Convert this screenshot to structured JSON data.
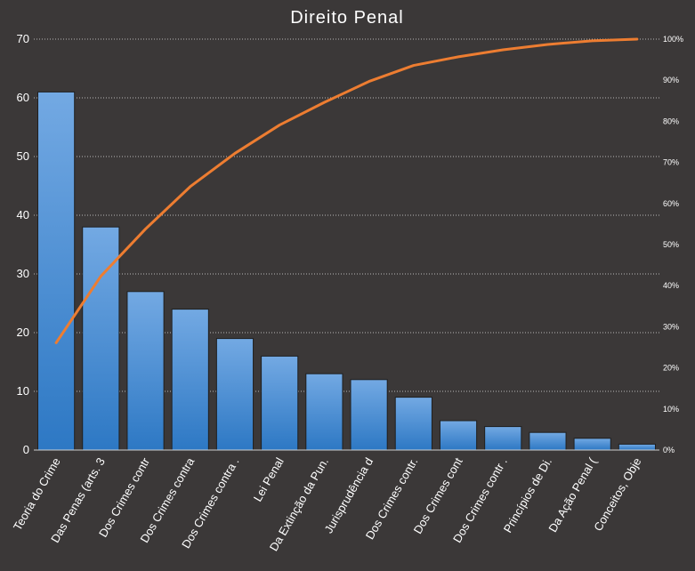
{
  "chart_data": {
    "type": "bar",
    "title": "Direito Penal",
    "categories": [
      "Teoria do Crime",
      "Das Penas (arts. 3",
      "Dos Crimes contr",
      "Dos Crimes contra",
      "Dos Crimes contra .",
      "Lei Penal",
      "Da Extinção da Pun.",
      "Jurisprudência d",
      "Dos Crimes contr.",
      "Dos Crimes cont",
      "Dos Crimes contr .",
      "Princípios de Di.",
      "Da Ação Penal (",
      "Conceitos, Obje"
    ],
    "series": [
      {
        "type": "bar",
        "values": [
          61,
          38,
          27,
          24,
          19,
          16,
          13,
          12,
          9,
          5,
          4,
          3,
          2,
          1
        ]
      },
      {
        "type": "line",
        "axis": "right",
        "values": [
          26.1,
          42.3,
          53.8,
          64.1,
          72.2,
          79.1,
          84.6,
          89.7,
          93.6,
          95.7,
          97.4,
          98.7,
          99.6,
          100
        ]
      }
    ],
    "xlabel": "",
    "ylabel": "",
    "ylim": [
      0,
      70
    ],
    "yticks": [
      "0",
      "10",
      "20",
      "30",
      "40",
      "50",
      "60",
      "70"
    ],
    "y2lim": [
      0,
      100
    ],
    "y2ticks": [
      "0%",
      "10%",
      "20%",
      "30%",
      "40%",
      "50%",
      "60%",
      "70%",
      "80%",
      "90%",
      "100%"
    ],
    "grid": true,
    "legend": "none",
    "colors": {
      "background": "#3b3838",
      "bar_top": "#73a9e3",
      "bar_bottom": "#2d78c4",
      "line": "#ed7d31",
      "grid": "#d9d9d9",
      "text": "#ffffff"
    }
  }
}
